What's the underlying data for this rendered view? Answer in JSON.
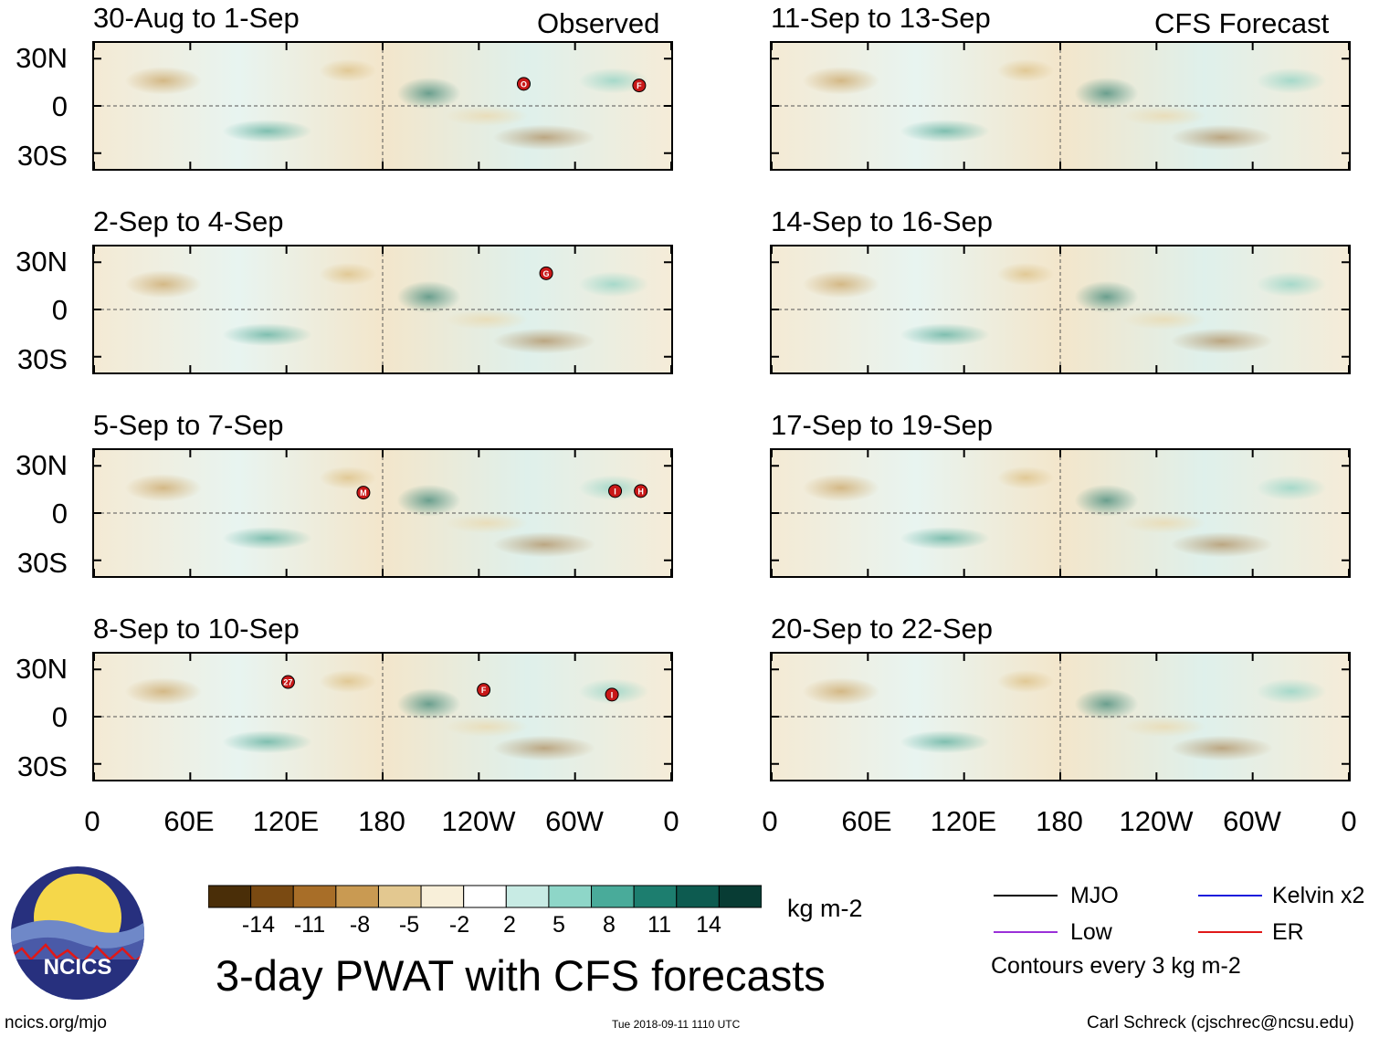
{
  "chart_data": {
    "type": "heatmap",
    "title": "3-day PWAT with CFS forecasts",
    "columns": [
      {
        "header": "Observed",
        "panels": [
          "30-Aug to 1-Sep",
          "2-Sep to 4-Sep",
          "5-Sep to 7-Sep",
          "8-Sep to 10-Sep"
        ]
      },
      {
        "header": "CFS Forecast",
        "panels": [
          "11-Sep to 13-Sep",
          "14-Sep to 16-Sep",
          "17-Sep to 19-Sep",
          "20-Sep to 22-Sep"
        ]
      }
    ],
    "y_ticks": [
      "30N",
      "0",
      "30S"
    ],
    "y_tick_values": [
      30,
      0,
      -30
    ],
    "ylim": [
      -40,
      40
    ],
    "x_ticks": [
      "0",
      "60E",
      "120E",
      "180",
      "120W",
      "60W",
      "0"
    ],
    "x_tick_values": [
      0,
      60,
      120,
      180,
      240,
      300,
      360
    ],
    "xlim": [
      0,
      360
    ],
    "colorbar": {
      "unit": "kg m-2",
      "labels": [
        "-14",
        "-11",
        "-8",
        "-5",
        "-2",
        "2",
        "5",
        "8",
        "11",
        "14"
      ],
      "colors": [
        "#4a2e08",
        "#7a4a12",
        "#a86e28",
        "#c99a52",
        "#e3c890",
        "#f8efd9",
        "#ffffff",
        "#c8ebe4",
        "#8ed6c8",
        "#49ab9a",
        "#1d7e6f",
        "#0d5b50",
        "#083c34"
      ]
    },
    "storm_markers": [
      {
        "panel": 0,
        "label": "O",
        "lon": 268,
        "lat": 14
      },
      {
        "panel": 0,
        "label": "F",
        "lon": 340,
        "lat": 13
      },
      {
        "panel": 1,
        "label": "G",
        "lon": 282,
        "lat": 23
      },
      {
        "panel": 2,
        "label": "M",
        "lon": 168,
        "lat": 13
      },
      {
        "panel": 2,
        "label": "I",
        "lon": 325,
        "lat": 14
      },
      {
        "panel": 2,
        "label": "H",
        "lon": 341,
        "lat": 14
      },
      {
        "panel": 3,
        "label": "27",
        "lon": 121,
        "lat": 22
      },
      {
        "panel": 3,
        "label": "F",
        "lon": 243,
        "lat": 17
      },
      {
        "panel": 3,
        "label": "I",
        "lon": 323,
        "lat": 14
      }
    ],
    "legend": [
      {
        "label": "MJO",
        "color": "#000000"
      },
      {
        "label": "Kelvin x2",
        "color": "#1a1adc"
      },
      {
        "label": "Low",
        "color": "#9a30d8"
      },
      {
        "label": "ER",
        "color": "#e01818"
      }
    ],
    "contour_note": "Contours every 3 kg m-2"
  },
  "footer": {
    "org_logo_text": "NCICS",
    "url": "ncics.org/mjo",
    "timestamp": "Tue 2018-09-11 1110 UTC",
    "credit": "Carl Schreck (cjschrec@ncsu.edu)"
  }
}
